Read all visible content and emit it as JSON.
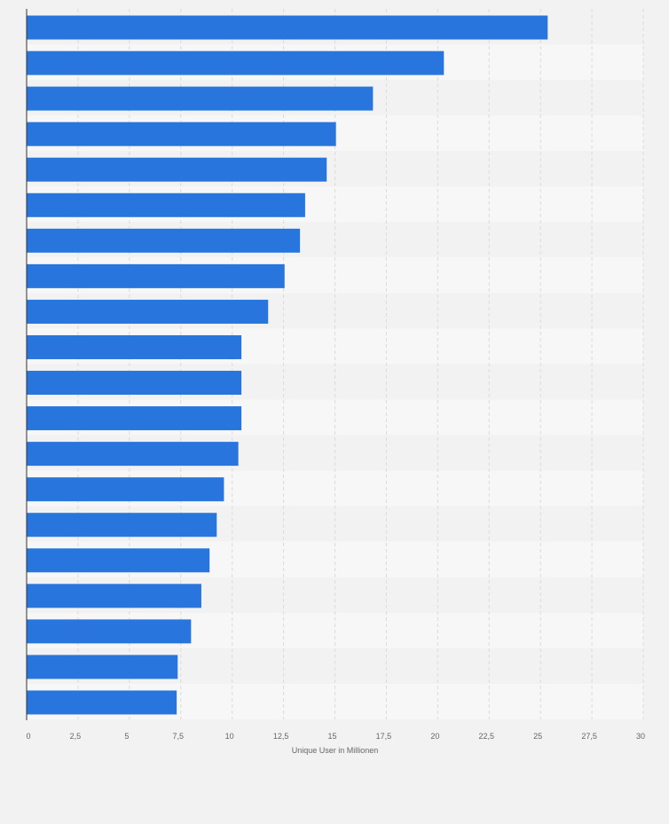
{
  "chart_data": {
    "type": "bar",
    "orientation": "horizontal",
    "categories": [
      "",
      "",
      "",
      "",
      "",
      "",
      "",
      "",
      "",
      "",
      "",
      "",
      "",
      "",
      "",
      "",
      "",
      "",
      "",
      ""
    ],
    "values": [
      25.35,
      20.3,
      16.85,
      15.05,
      14.6,
      13.55,
      13.3,
      12.55,
      11.75,
      10.45,
      10.45,
      10.45,
      10.3,
      9.6,
      9.25,
      8.9,
      8.5,
      8.0,
      7.35,
      7.3
    ],
    "title": "",
    "xlabel": "Unique User in Millionen",
    "ylabel": "",
    "xlim": [
      0,
      30
    ],
    "xticks": [
      "0",
      "2,5",
      "5",
      "7,5",
      "10",
      "12,5",
      "15",
      "17,5",
      "20",
      "22,5",
      "25",
      "27,5",
      "30"
    ],
    "grid": true,
    "legend": "none",
    "colors": {
      "bar": "#2876dd",
      "plot_band_light": "#f7f7f7",
      "plot_band_dark": "#f2f2f2",
      "grid": "#dcdcdc",
      "axis": "#333333",
      "text": "#666666",
      "background": "#f2f2f2"
    }
  }
}
